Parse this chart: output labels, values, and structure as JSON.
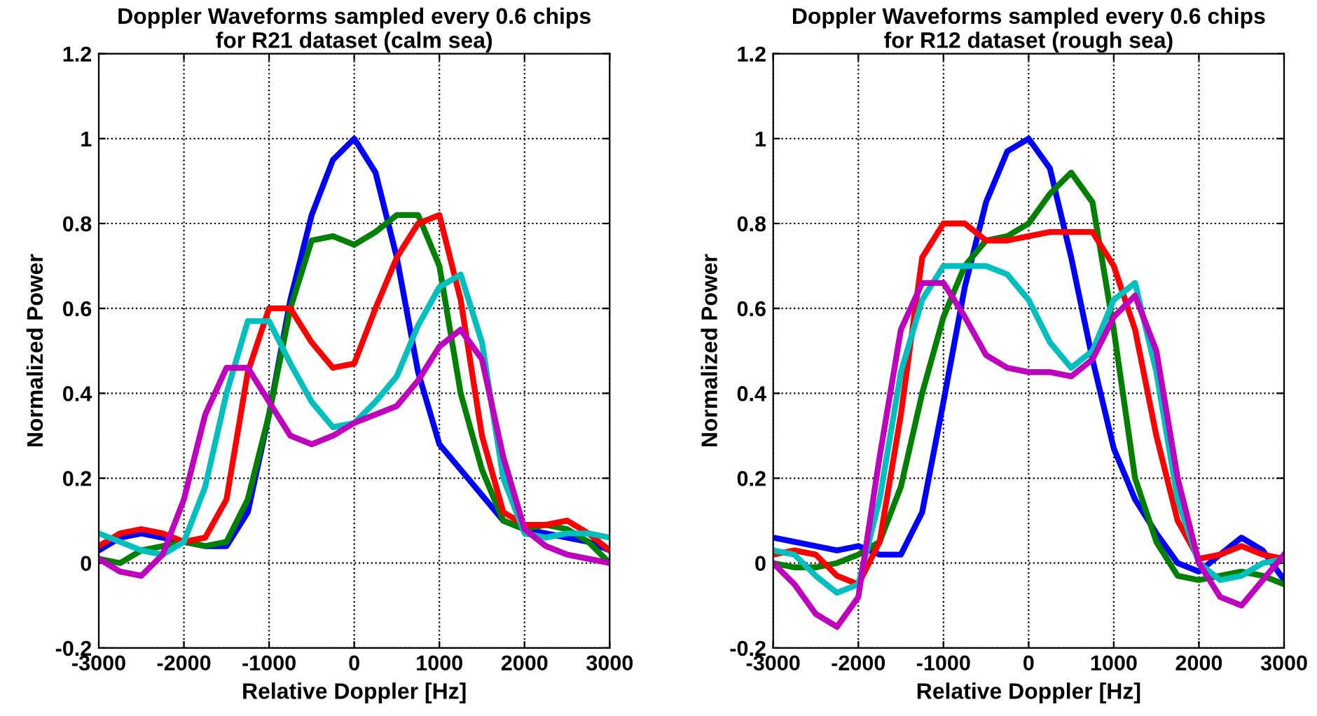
{
  "chart_data": [
    {
      "type": "line",
      "title": "Doppler Waveforms sampled every 0.6 chips\nfor R21 dataset (calm sea)",
      "xlabel": "Relative Doppler [Hz]",
      "ylabel": "Normalized Power",
      "x": [
        -3000,
        -2750,
        -2500,
        -2250,
        -2000,
        -1750,
        -1500,
        -1250,
        -1000,
        -750,
        -500,
        -250,
        0,
        250,
        500,
        750,
        1000,
        1250,
        1500,
        1750,
        2000,
        2250,
        2500,
        2750,
        3000
      ],
      "series": [
        {
          "color": "#0000ff",
          "values": [
            0.03,
            0.06,
            0.07,
            0.06,
            0.05,
            0.04,
            0.04,
            0.12,
            0.35,
            0.62,
            0.82,
            0.95,
            1.0,
            0.92,
            0.72,
            0.45,
            0.28,
            0.22,
            0.16,
            0.1,
            0.08,
            0.07,
            0.06,
            0.05,
            0.03
          ]
        },
        {
          "color": "#008000",
          "values": [
            0.01,
            0.0,
            0.03,
            0.04,
            0.05,
            0.04,
            0.05,
            0.15,
            0.35,
            0.6,
            0.76,
            0.77,
            0.75,
            0.78,
            0.82,
            0.82,
            0.7,
            0.4,
            0.22,
            0.1,
            0.08,
            0.09,
            0.08,
            0.05,
            0.0
          ]
        },
        {
          "color": "#ff0000",
          "values": [
            0.04,
            0.07,
            0.08,
            0.07,
            0.05,
            0.06,
            0.15,
            0.45,
            0.6,
            0.6,
            0.52,
            0.46,
            0.47,
            0.6,
            0.72,
            0.8,
            0.82,
            0.62,
            0.3,
            0.12,
            0.09,
            0.09,
            0.1,
            0.07,
            0.03
          ]
        },
        {
          "color": "#00bfbf",
          "values": [
            0.07,
            0.05,
            0.03,
            0.02,
            0.05,
            0.18,
            0.4,
            0.57,
            0.57,
            0.47,
            0.38,
            0.32,
            0.33,
            0.38,
            0.44,
            0.56,
            0.65,
            0.68,
            0.52,
            0.2,
            0.07,
            0.06,
            0.07,
            0.07,
            0.06
          ]
        },
        {
          "color": "#bf00bf",
          "values": [
            0.01,
            -0.02,
            -0.03,
            0.02,
            0.15,
            0.35,
            0.46,
            0.46,
            0.38,
            0.3,
            0.28,
            0.3,
            0.33,
            0.35,
            0.37,
            0.43,
            0.51,
            0.55,
            0.48,
            0.25,
            0.08,
            0.04,
            0.02,
            0.01,
            0.0
          ]
        }
      ],
      "xlim": [
        -3000,
        3000
      ],
      "xticks": [
        -3000,
        -2000,
        -1000,
        0,
        1000,
        2000,
        3000
      ],
      "ylim": [
        -0.2,
        1.2
      ],
      "yticks": [
        -0.2,
        0,
        0.2,
        0.4,
        0.6,
        0.8,
        1,
        1.2
      ],
      "grid": true
    },
    {
      "type": "line",
      "title": "Doppler Waveforms sampled every 0.6 chips\nfor R12 dataset (rough sea)",
      "xlabel": "Relative Doppler [Hz]",
      "ylabel": "Normalized Power",
      "x": [
        -3000,
        -2750,
        -2500,
        -2250,
        -2000,
        -1750,
        -1500,
        -1250,
        -1000,
        -750,
        -500,
        -250,
        0,
        250,
        500,
        750,
        1000,
        1250,
        1500,
        1750,
        2000,
        2250,
        2500,
        2750,
        3000
      ],
      "series": [
        {
          "color": "#0000ff",
          "values": [
            0.06,
            0.05,
            0.04,
            0.03,
            0.04,
            0.02,
            0.02,
            0.12,
            0.38,
            0.65,
            0.85,
            0.97,
            1.0,
            0.93,
            0.72,
            0.48,
            0.27,
            0.15,
            0.07,
            0.0,
            -0.02,
            0.02,
            0.06,
            0.03,
            -0.04
          ]
        },
        {
          "color": "#008000",
          "values": [
            0.0,
            -0.01,
            -0.01,
            0.0,
            0.02,
            0.05,
            0.18,
            0.4,
            0.58,
            0.7,
            0.76,
            0.77,
            0.8,
            0.87,
            0.92,
            0.85,
            0.55,
            0.2,
            0.05,
            -0.03,
            -0.04,
            -0.03,
            -0.02,
            -0.03,
            -0.05
          ]
        },
        {
          "color": "#ff0000",
          "values": [
            0.02,
            0.03,
            0.02,
            -0.03,
            -0.05,
            0.05,
            0.35,
            0.72,
            0.8,
            0.8,
            0.76,
            0.76,
            0.77,
            0.78,
            0.78,
            0.78,
            0.7,
            0.55,
            0.3,
            0.1,
            0.01,
            0.02,
            0.04,
            0.02,
            0.01
          ]
        },
        {
          "color": "#00bfbf",
          "values": [
            0.03,
            0.02,
            -0.03,
            -0.07,
            -0.05,
            0.15,
            0.45,
            0.62,
            0.7,
            0.7,
            0.7,
            0.68,
            0.62,
            0.52,
            0.46,
            0.5,
            0.62,
            0.66,
            0.45,
            0.15,
            0.0,
            -0.04,
            -0.03,
            0.0,
            0.01
          ]
        },
        {
          "color": "#bf00bf",
          "values": [
            0.0,
            -0.05,
            -0.12,
            -0.15,
            -0.08,
            0.25,
            0.55,
            0.66,
            0.66,
            0.58,
            0.49,
            0.46,
            0.45,
            0.45,
            0.44,
            0.48,
            0.58,
            0.63,
            0.5,
            0.2,
            0.0,
            -0.08,
            -0.1,
            -0.04,
            0.02
          ]
        }
      ],
      "xlim": [
        -3000,
        3000
      ],
      "xticks": [
        -3000,
        -2000,
        -1000,
        0,
        1000,
        2000,
        3000
      ],
      "ylim": [
        -0.2,
        1.2
      ],
      "yticks": [
        -0.2,
        0,
        0.2,
        0.4,
        0.6,
        0.8,
        1,
        1.2
      ],
      "grid": true
    }
  ]
}
